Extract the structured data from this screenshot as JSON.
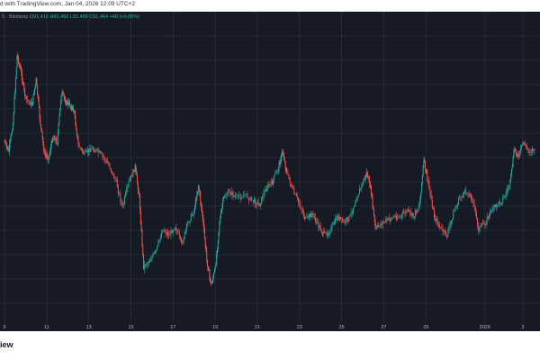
{
  "header": {
    "published_text": "d with TradingView.com, Jan 04, 2026 12:09 UTC+2"
  },
  "symbol_bar": {
    "name": "5 · Bitstamp",
    "open": "O91,416",
    "high": "H91,466",
    "low": "L91,409",
    "close": "C91,464",
    "change": "+48 (+0.05%)"
  },
  "chart_data": {
    "type": "candlestick",
    "x_ticks": [
      "9",
      "11",
      "13",
      "15",
      "17",
      "19",
      "21",
      "23",
      "25",
      "27",
      "29",
      "2026",
      "3"
    ],
    "colors": {
      "up": "#26a69a",
      "down": "#ef5350",
      "background": "#161a25",
      "grid": "#2a2e39"
    },
    "grid": true,
    "price_path": [
      {
        "x": 9,
        "y": 0.42
      },
      {
        "x": 9.2,
        "y": 0.45
      },
      {
        "x": 9.4,
        "y": 0.36
      },
      {
        "x": 9.6,
        "y": 0.14
      },
      {
        "x": 9.8,
        "y": 0.2
      },
      {
        "x": 10,
        "y": 0.28
      },
      {
        "x": 10.3,
        "y": 0.3
      },
      {
        "x": 10.5,
        "y": 0.22
      },
      {
        "x": 10.7,
        "y": 0.36
      },
      {
        "x": 10.9,
        "y": 0.46
      },
      {
        "x": 11.1,
        "y": 0.47
      },
      {
        "x": 11.3,
        "y": 0.4
      },
      {
        "x": 11.5,
        "y": 0.42
      },
      {
        "x": 11.7,
        "y": 0.26
      },
      {
        "x": 11.9,
        "y": 0.29
      },
      {
        "x": 12.1,
        "y": 0.3
      },
      {
        "x": 12.3,
        "y": 0.32
      },
      {
        "x": 12.5,
        "y": 0.43
      },
      {
        "x": 12.8,
        "y": 0.46
      },
      {
        "x": 13.1,
        "y": 0.44
      },
      {
        "x": 13.4,
        "y": 0.45
      },
      {
        "x": 13.7,
        "y": 0.47
      },
      {
        "x": 14,
        "y": 0.5
      },
      {
        "x": 14.3,
        "y": 0.55
      },
      {
        "x": 14.6,
        "y": 0.63
      },
      {
        "x": 14.9,
        "y": 0.55
      },
      {
        "x": 15.2,
        "y": 0.5
      },
      {
        "x": 15.4,
        "y": 0.6
      },
      {
        "x": 15.6,
        "y": 0.82
      },
      {
        "x": 15.9,
        "y": 0.8
      },
      {
        "x": 16.2,
        "y": 0.77
      },
      {
        "x": 16.5,
        "y": 0.7
      },
      {
        "x": 16.8,
        "y": 0.72
      },
      {
        "x": 17.1,
        "y": 0.69
      },
      {
        "x": 17.4,
        "y": 0.75
      },
      {
        "x": 17.7,
        "y": 0.68
      },
      {
        "x": 18,
        "y": 0.64
      },
      {
        "x": 18.2,
        "y": 0.56
      },
      {
        "x": 18.4,
        "y": 0.66
      },
      {
        "x": 18.6,
        "y": 0.8
      },
      {
        "x": 18.8,
        "y": 0.88
      },
      {
        "x": 19,
        "y": 0.83
      },
      {
        "x": 19.2,
        "y": 0.68
      },
      {
        "x": 19.4,
        "y": 0.6
      },
      {
        "x": 19.7,
        "y": 0.58
      },
      {
        "x": 20,
        "y": 0.6
      },
      {
        "x": 20.4,
        "y": 0.59
      },
      {
        "x": 20.8,
        "y": 0.61
      },
      {
        "x": 21.1,
        "y": 0.62
      },
      {
        "x": 21.4,
        "y": 0.57
      },
      {
        "x": 21.7,
        "y": 0.55
      },
      {
        "x": 22,
        "y": 0.5
      },
      {
        "x": 22.2,
        "y": 0.45
      },
      {
        "x": 22.4,
        "y": 0.52
      },
      {
        "x": 22.7,
        "y": 0.58
      },
      {
        "x": 23,
        "y": 0.62
      },
      {
        "x": 23.3,
        "y": 0.67
      },
      {
        "x": 23.6,
        "y": 0.65
      },
      {
        "x": 23.9,
        "y": 0.69
      },
      {
        "x": 24.2,
        "y": 0.72
      },
      {
        "x": 24.5,
        "y": 0.7
      },
      {
        "x": 24.8,
        "y": 0.66
      },
      {
        "x": 25.1,
        "y": 0.68
      },
      {
        "x": 25.4,
        "y": 0.66
      },
      {
        "x": 25.7,
        "y": 0.6
      },
      {
        "x": 26,
        "y": 0.55
      },
      {
        "x": 26.2,
        "y": 0.52
      },
      {
        "x": 26.4,
        "y": 0.58
      },
      {
        "x": 26.6,
        "y": 0.7
      },
      {
        "x": 26.9,
        "y": 0.68
      },
      {
        "x": 27.2,
        "y": 0.67
      },
      {
        "x": 27.5,
        "y": 0.66
      },
      {
        "x": 27.8,
        "y": 0.66
      },
      {
        "x": 28.1,
        "y": 0.64
      },
      {
        "x": 28.4,
        "y": 0.66
      },
      {
        "x": 28.7,
        "y": 0.62
      },
      {
        "x": 28.9,
        "y": 0.48
      },
      {
        "x": 29.1,
        "y": 0.55
      },
      {
        "x": 29.4,
        "y": 0.66
      },
      {
        "x": 29.7,
        "y": 0.7
      },
      {
        "x": 30,
        "y": 0.72
      },
      {
        "x": 30.3,
        "y": 0.65
      },
      {
        "x": 30.6,
        "y": 0.6
      },
      {
        "x": 30.9,
        "y": 0.58
      },
      {
        "x": 31.2,
        "y": 0.6
      },
      {
        "x": 31.5,
        "y": 0.7
      },
      {
        "x": 31.8,
        "y": 0.68
      },
      {
        "x": 32.1,
        "y": 0.64
      },
      {
        "x": 32.4,
        "y": 0.62
      },
      {
        "x": 32.7,
        "y": 0.6
      },
      {
        "x": 33,
        "y": 0.55
      },
      {
        "x": 33.2,
        "y": 0.44
      },
      {
        "x": 33.4,
        "y": 0.47
      },
      {
        "x": 33.6,
        "y": 0.42
      },
      {
        "x": 33.9,
        "y": 0.45
      },
      {
        "x": 34.2,
        "y": 0.44
      }
    ]
  }
}
